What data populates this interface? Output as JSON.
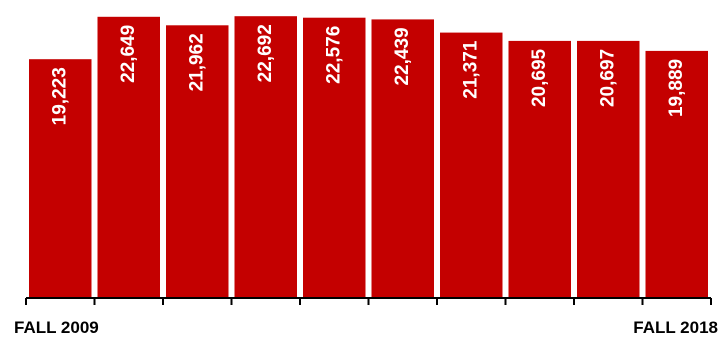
{
  "chart_data": {
    "type": "bar",
    "values": [
      19223,
      22649,
      21962,
      22692,
      22576,
      22439,
      21371,
      20695,
      20697,
      19889
    ],
    "value_labels": [
      "19,223",
      "22,649",
      "21,962",
      "22,692",
      "22,576",
      "22,439",
      "21,371",
      "20,695",
      "20,697",
      "19,889"
    ],
    "x_start_label": "FALL 2009",
    "x_end_label": "FALL 2018",
    "ylim": [
      0,
      23600
    ],
    "grid": false,
    "bar_color": "#c40000",
    "label_color": "#ffffff",
    "axis_color": "#000000"
  }
}
